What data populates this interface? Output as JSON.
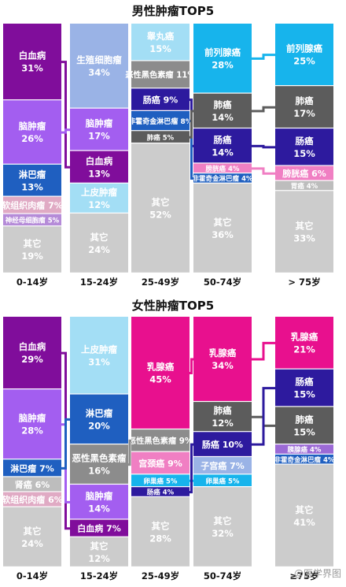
{
  "colors": {
    "白血病": "#800d9b",
    "脑肿瘤": "#a35ef0",
    "淋巴瘤": "#1f5fc0",
    "软组织肉瘤": "#e0aac4",
    "神经母细胞瘤": "#b58bd8",
    "其它": "#cccccc",
    "生殖细胞瘤": "#9ab3e6",
    "上皮肿瘤": "#a3def5",
    "睾丸癌": "#a3def5",
    "恶性黑色素瘤": "#8c8c8c",
    "肠癌": "#2d1a9e",
    "非霍奇金淋巴瘤": "#1f5fc0",
    "肺癌": "#5c5c5c",
    "前列腺癌": "#17b4ec",
    "膀胱癌": "#f07fc3",
    "胃癌": "#bdbdbd",
    "肾癌": "#bdbdbd",
    "乳腺癌": "#e8108e",
    "宫颈癌": "#f07fc3",
    "卵巢癌": "#17b4ec",
    "子宫癌": "#9ab3e6",
    "胰腺癌": "#9c6ad6",
    "connector": "#2a2a9a"
  },
  "watermark": "@医学界图",
  "chart_data": [
    {
      "type": "stacked-bar",
      "title": "男性肿瘤TOP5",
      "categories": [
        "0-14岁",
        "15-24岁",
        "25-49岁",
        "50-74岁",
        "> 75岁"
      ],
      "stacks": [
        [
          {
            "name": "白血病",
            "value": 31
          },
          {
            "name": "脑肿瘤",
            "value": 26
          },
          {
            "name": "淋巴瘤",
            "value": 13
          },
          {
            "name": "软组织肉瘤",
            "value": 7
          },
          {
            "name": "神经母细胞瘤",
            "value": 5
          },
          {
            "name": "其它",
            "value": 19
          }
        ],
        [
          {
            "name": "生殖细胞瘤",
            "value": 34
          },
          {
            "name": "脑肿瘤",
            "value": 17
          },
          {
            "name": "白血病",
            "value": 13
          },
          {
            "name": "上皮肿瘤",
            "value": 12
          },
          {
            "name": "其它",
            "value": 24
          }
        ],
        [
          {
            "name": "睾丸癌",
            "value": 15
          },
          {
            "name": "恶性黑色素瘤",
            "value": 11
          },
          {
            "name": "肠癌",
            "value": 9
          },
          {
            "name": "非霍奇金淋巴瘤",
            "value": 8
          },
          {
            "name": "肺癌",
            "value": 5
          },
          {
            "name": "其它",
            "value": 52
          }
        ],
        [
          {
            "name": "前列腺癌",
            "value": 28
          },
          {
            "name": "肺癌",
            "value": 14
          },
          {
            "name": "肠癌",
            "value": 14
          },
          {
            "name": "膀胱癌",
            "value": 4
          },
          {
            "name": "非霍奇金淋巴瘤",
            "value": 4
          },
          {
            "name": "其它",
            "value": 36
          }
        ],
        [
          {
            "name": "前列腺癌",
            "value": 25
          },
          {
            "name": "肺癌",
            "value": 17
          },
          {
            "name": "肠癌",
            "value": 15
          },
          {
            "name": "膀胱癌",
            "value": 6
          },
          {
            "name": "胃癌",
            "value": 4
          },
          {
            "name": "其它",
            "value": 33
          }
        ]
      ]
    },
    {
      "type": "stacked-bar",
      "title": "女性肿瘤TOP5",
      "categories": [
        "0-14岁",
        "15-24岁",
        "25-49岁",
        "50-74岁",
        "≥75岁"
      ],
      "stacks": [
        [
          {
            "name": "白血病",
            "value": 29
          },
          {
            "name": "脑肿瘤",
            "value": 28
          },
          {
            "name": "淋巴瘤",
            "value": 7
          },
          {
            "name": "肾癌",
            "value": 6
          },
          {
            "name": "软组织肉瘤",
            "value": 6
          },
          {
            "name": "其它",
            "value": 24
          }
        ],
        [
          {
            "name": "上皮肿瘤",
            "value": 31
          },
          {
            "name": "淋巴瘤",
            "value": 20
          },
          {
            "name": "恶性黑色素瘤",
            "value": 16
          },
          {
            "name": "脑肿瘤",
            "value": 14
          },
          {
            "name": "白血病",
            "value": 7
          },
          {
            "name": "其它",
            "value": 12
          }
        ],
        [
          {
            "name": "乳腺癌",
            "value": 45
          },
          {
            "name": "恶性黑色素瘤",
            "value": 9
          },
          {
            "name": "宫颈癌",
            "value": 9
          },
          {
            "name": "卵巢癌",
            "value": 5
          },
          {
            "name": "肠癌",
            "value": 4
          },
          {
            "name": "其它",
            "value": 28
          }
        ],
        [
          {
            "name": "乳腺癌",
            "value": 34
          },
          {
            "name": "肺癌",
            "value": 12
          },
          {
            "name": "肠癌",
            "value": 10
          },
          {
            "name": "子宫癌",
            "value": 7
          },
          {
            "name": "卵巢癌",
            "value": 5
          },
          {
            "name": "其它",
            "value": 32
          }
        ],
        [
          {
            "name": "乳腺癌",
            "value": 21
          },
          {
            "name": "肠癌",
            "value": 15
          },
          {
            "name": "肺癌",
            "value": 15
          },
          {
            "name": "胰腺癌",
            "value": 4
          },
          {
            "name": "非霍奇金淋巴瘤",
            "value": 4
          },
          {
            "name": "其它",
            "value": 41
          }
        ]
      ]
    }
  ]
}
